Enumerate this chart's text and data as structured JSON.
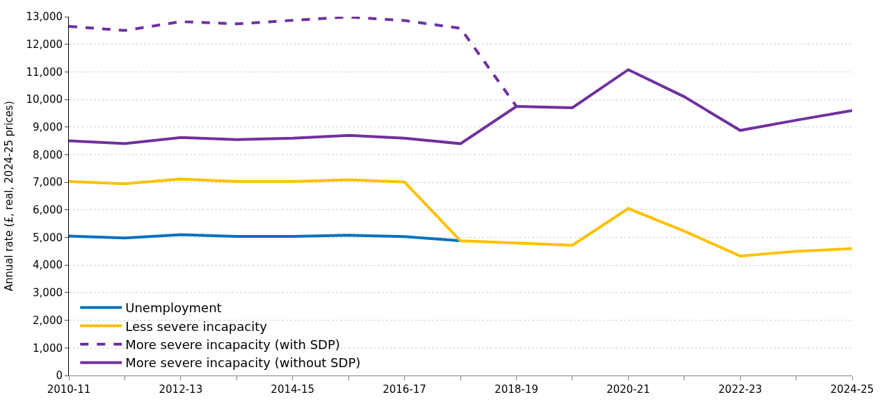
{
  "chart_data": {
    "type": "line",
    "ylabel": "Annual rate (£, real, 2024-25 prices)",
    "categories": [
      "2010-11",
      null,
      "2012-13",
      null,
      "2014-15",
      null,
      "2016-17",
      null,
      "2018-19",
      null,
      "2020-21",
      null,
      "2022-23",
      null,
      "2024-25"
    ],
    "series": [
      {
        "name": "Unemployment",
        "color": "#0070c0",
        "line_style": "solid",
        "values": [
          5050,
          4980,
          5100,
          5040,
          5040,
          5080,
          5030,
          4880,
          null,
          null,
          null,
          null,
          null,
          null,
          null
        ]
      },
      {
        "name": "Less severe incapacity",
        "color": "#ffc000",
        "line_style": "solid",
        "values": [
          7030,
          6950,
          7120,
          7030,
          7030,
          7090,
          7010,
          4880,
          4800,
          4720,
          6050,
          5230,
          4330,
          4500,
          4600
        ]
      },
      {
        "name": "More severe incapacity (with SDP)",
        "color": "#7030a0",
        "line_style": "dashed",
        "values": [
          12650,
          12500,
          12820,
          12740,
          12870,
          12990,
          12860,
          12580,
          9750,
          null,
          null,
          null,
          null,
          null,
          null
        ]
      },
      {
        "name": "More severe incapacity (without SDP)",
        "color": "#7030a0",
        "line_style": "solid",
        "values": [
          8500,
          8400,
          8620,
          8550,
          8600,
          8700,
          8600,
          8400,
          9750,
          9700,
          11080,
          10100,
          8880,
          9250,
          9600
        ]
      }
    ],
    "ylim": [
      0,
      13000
    ],
    "yticks": [
      {
        "value": 0,
        "label": "0"
      },
      {
        "value": 1000,
        "label": "1,000"
      },
      {
        "value": 2000,
        "label": "2,000"
      },
      {
        "value": 3000,
        "label": "3,000"
      },
      {
        "value": 4000,
        "label": "4,000"
      },
      {
        "value": 5000,
        "label": "5,000"
      },
      {
        "value": 6000,
        "label": "6,000"
      },
      {
        "value": 7000,
        "label": "7,000"
      },
      {
        "value": 8000,
        "label": "8,000"
      },
      {
        "value": 9000,
        "label": "9,000"
      },
      {
        "value": 10000,
        "label": "10,000"
      },
      {
        "value": 11000,
        "label": "11,000"
      },
      {
        "value": 12000,
        "label": "12,000"
      },
      {
        "value": 13000,
        "label": "13,000"
      }
    ],
    "grid": "y",
    "legend": "bottom left",
    "marker": "none"
  }
}
